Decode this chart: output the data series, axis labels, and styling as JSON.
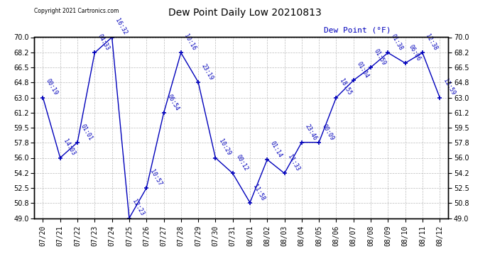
{
  "title": "Dew Point Daily Low 20210813",
  "ylabel": "Dew Point (°F)",
  "background_color": "#ffffff",
  "grid_color": "#aaaaaa",
  "line_color": "#0000bb",
  "text_color": "#0000bb",
  "copyright_text": "Copyright 2021 Cartronics.com",
  "ylim": [
    49.0,
    70.0
  ],
  "yticks": [
    49.0,
    50.8,
    52.5,
    54.2,
    56.0,
    57.8,
    59.5,
    61.2,
    63.0,
    64.8,
    66.5,
    68.2,
    70.0
  ],
  "points": [
    {
      "date": "07/20",
      "value": 63.0,
      "label": "00:19"
    },
    {
      "date": "07/21",
      "value": 56.0,
      "label": "14:03"
    },
    {
      "date": "07/22",
      "value": 57.8,
      "label": "01:01"
    },
    {
      "date": "07/23",
      "value": 68.2,
      "label": "04:33"
    },
    {
      "date": "07/24",
      "value": 70.0,
      "label": "16:32"
    },
    {
      "date": "07/25",
      "value": 49.0,
      "label": "12:23"
    },
    {
      "date": "07/26",
      "value": 52.5,
      "label": "10:57"
    },
    {
      "date": "07/27",
      "value": 61.2,
      "label": "06:54"
    },
    {
      "date": "07/28",
      "value": 68.2,
      "label": "10:16"
    },
    {
      "date": "07/29",
      "value": 64.8,
      "label": "23:19"
    },
    {
      "date": "07/30",
      "value": 56.0,
      "label": "10:29"
    },
    {
      "date": "07/31",
      "value": 54.2,
      "label": "00:12"
    },
    {
      "date": "08/01",
      "value": 50.8,
      "label": "11:58"
    },
    {
      "date": "08/02",
      "value": 55.8,
      "label": "01:14"
    },
    {
      "date": "08/03",
      "value": 54.2,
      "label": "11:33"
    },
    {
      "date": "08/04",
      "value": 57.8,
      "label": "23:46"
    },
    {
      "date": "08/05",
      "value": 57.8,
      "label": "00:09"
    },
    {
      "date": "08/06",
      "value": 63.0,
      "label": "18:55"
    },
    {
      "date": "08/07",
      "value": 65.0,
      "label": "01:04"
    },
    {
      "date": "08/08",
      "value": 66.5,
      "label": "01:59"
    },
    {
      "date": "08/09",
      "value": 68.2,
      "label": "01:38"
    },
    {
      "date": "08/10",
      "value": 67.0,
      "label": "06:06"
    },
    {
      "date": "08/11",
      "value": 68.2,
      "label": "12:38"
    },
    {
      "date": "08/12",
      "value": 63.0,
      "label": "12:59"
    }
  ]
}
